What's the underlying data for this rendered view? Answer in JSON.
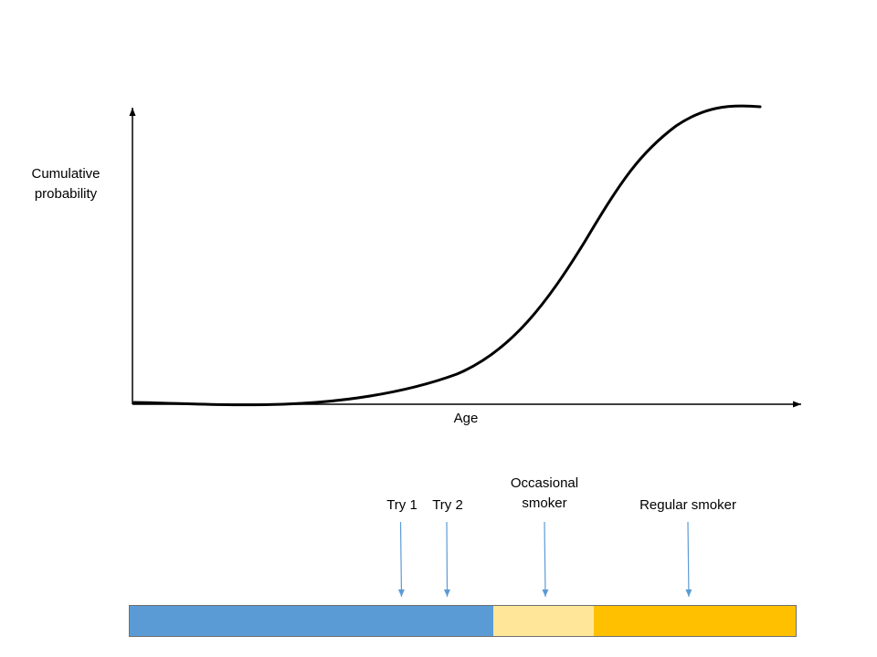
{
  "diagram": {
    "ylabel": "Cumulative probability",
    "xlabel": "Age",
    "curve_color": "#000000",
    "axis_color": "#000000"
  },
  "timeline": {
    "arrow_color": "#5b9bd5",
    "annotations": [
      {
        "id": "try1",
        "label": "Try 1"
      },
      {
        "id": "try2",
        "label": "Try 2"
      },
      {
        "id": "occasional",
        "label": "Occasional smoker"
      },
      {
        "id": "regular",
        "label": "Regular smoker"
      }
    ],
    "segments": [
      {
        "id": "segment-blue",
        "color": "#5b9bd5"
      },
      {
        "id": "segment-light-yellow",
        "color": "#ffe699"
      },
      {
        "id": "segment-orange",
        "color": "#ffc000"
      }
    ]
  }
}
